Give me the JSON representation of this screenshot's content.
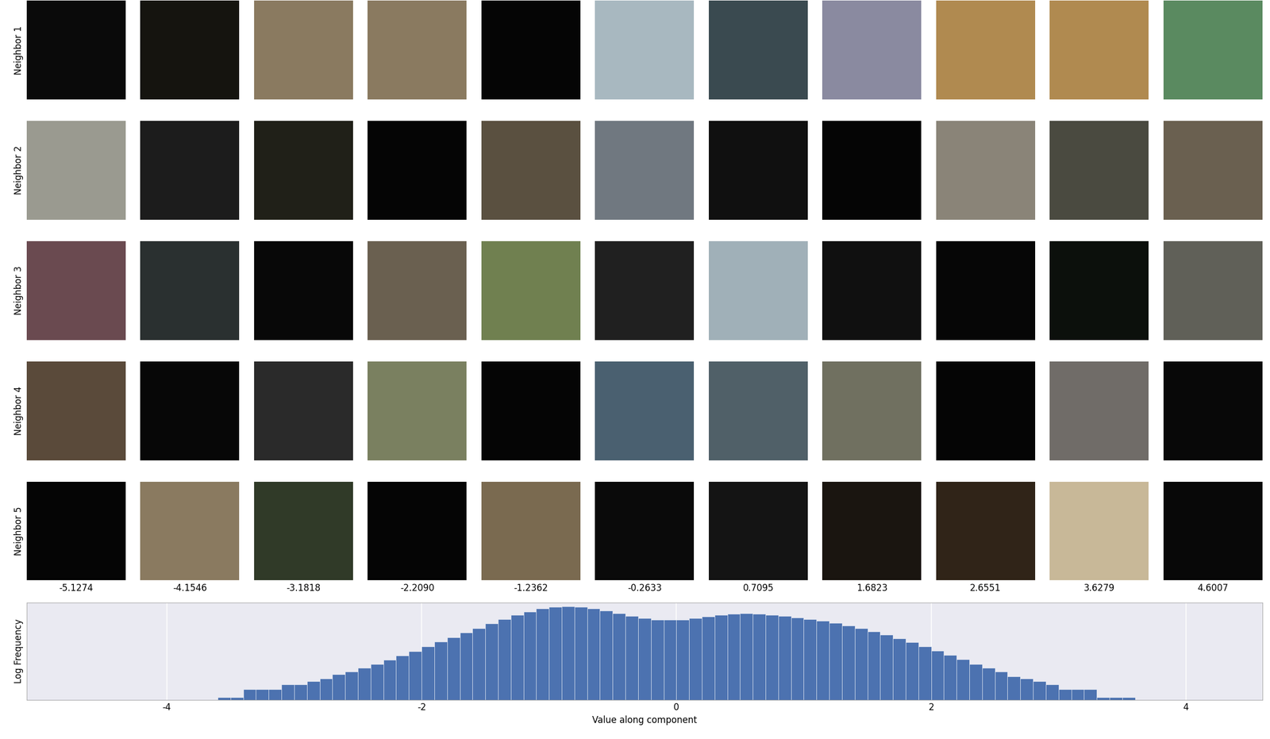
{
  "image_grid": {
    "row_labels": [
      "Neighbor 1",
      "Neighbor 2",
      "Neighbor 3",
      "Neighbor 4",
      "Neighbor 5"
    ],
    "column_values": [
      -5.1274,
      -4.1546,
      -3.1818,
      -2.209,
      -1.2362,
      -0.2633,
      0.7095,
      1.6823,
      2.6551,
      3.6279,
      4.6007
    ],
    "column_labels": [
      "-5.1274",
      "-4.1546",
      "-3.1818",
      "-2.2090",
      "-1.2362",
      "-0.2633",
      "0.7095",
      "1.6823",
      "2.6551",
      "3.6279",
      "4.6007"
    ],
    "colors": [
      [
        "#0a0a0a",
        "#15140f",
        "#8a7a60",
        "#8a7a60",
        "#050505",
        "#a8b8c0",
        "#3a4a50",
        "#8a8aa0",
        "#b08a50",
        "#b08a50",
        "#5a8a60"
      ],
      [
        "#9a9a90",
        "#1c1c1c",
        "#202018",
        "#050505",
        "#5a5040",
        "#707880",
        "#101010",
        "#050505",
        "#8a8478",
        "#4a4a40",
        "#6a6050"
      ],
      [
        "#6a4a50",
        "#2a3030",
        "#080808",
        "#6a6050",
        "#708050",
        "#202020",
        "#a0b0b8",
        "#101010",
        "#060606",
        "#0c100c",
        "#606058"
      ],
      [
        "#5a4a3a",
        "#070707",
        "#2a2a2a",
        "#7a8060",
        "#050505",
        "#4a6070",
        "#506068",
        "#707060",
        "#050505",
        "#706c68",
        "#080808"
      ],
      [
        "#050505",
        "#8a7a60",
        "#303a28",
        "#050505",
        "#7a6a50",
        "#0a0a0a",
        "#141414",
        "#1a1510",
        "#302418",
        "#c8b898",
        "#080808"
      ]
    ]
  },
  "chart_data": {
    "type": "histogram",
    "xlabel": "Value along component",
    "ylabel": "Log Frequency",
    "bins": [
      -3.6,
      -3.5,
      -3.4,
      -3.3,
      -3.2,
      -3.1,
      -3.0,
      -2.9,
      -2.8,
      -2.7,
      -2.6,
      -2.5,
      -2.4,
      -2.3,
      -2.2,
      -2.1,
      -2.0,
      -1.9,
      -1.8,
      -1.7,
      -1.6,
      -1.5,
      -1.4,
      -1.3,
      -1.2,
      -1.1,
      -1.0,
      -0.9,
      -0.8,
      -0.7,
      -0.6,
      -0.5,
      -0.4,
      -0.3,
      -0.2,
      -0.1,
      0.0,
      0.1,
      0.2,
      0.3,
      0.4,
      0.5,
      0.6,
      0.7,
      0.8,
      0.9,
      1.0,
      1.1,
      1.2,
      1.3,
      1.4,
      1.5,
      1.6,
      1.7,
      1.8,
      1.9,
      2.0,
      2.1,
      2.2,
      2.3,
      2.4,
      2.5,
      2.6,
      2.7,
      2.8,
      2.9,
      3.0,
      3.1,
      3.2,
      3.3,
      3.4,
      3.5,
      3.6
    ],
    "counts": [
      1,
      1,
      2,
      2,
      2,
      3,
      3,
      4,
      5,
      7,
      9,
      12,
      17,
      24,
      34,
      50,
      75,
      110,
      160,
      240,
      350,
      520,
      750,
      1050,
      1400,
      1800,
      2100,
      2200,
      2050,
      1800,
      1500,
      1200,
      950,
      800,
      720,
      690,
      720,
      800,
      920,
      1050,
      1150,
      1200,
      1150,
      1050,
      950,
      850,
      750,
      640,
      530,
      430,
      340,
      260,
      195,
      145,
      105,
      75,
      52,
      36,
      25,
      17,
      12,
      9,
      6,
      5,
      4,
      3,
      2,
      2,
      2,
      1,
      1,
      1
    ],
    "xlim": [
      -5.1,
      4.6
    ],
    "ylim": [
      0.8,
      3000
    ],
    "xticks": [
      -4,
      -2,
      0,
      2,
      4
    ],
    "yticks": [],
    "log": "y",
    "grid": true,
    "tick_labels": "x",
    "color": "#4c72b0"
  }
}
